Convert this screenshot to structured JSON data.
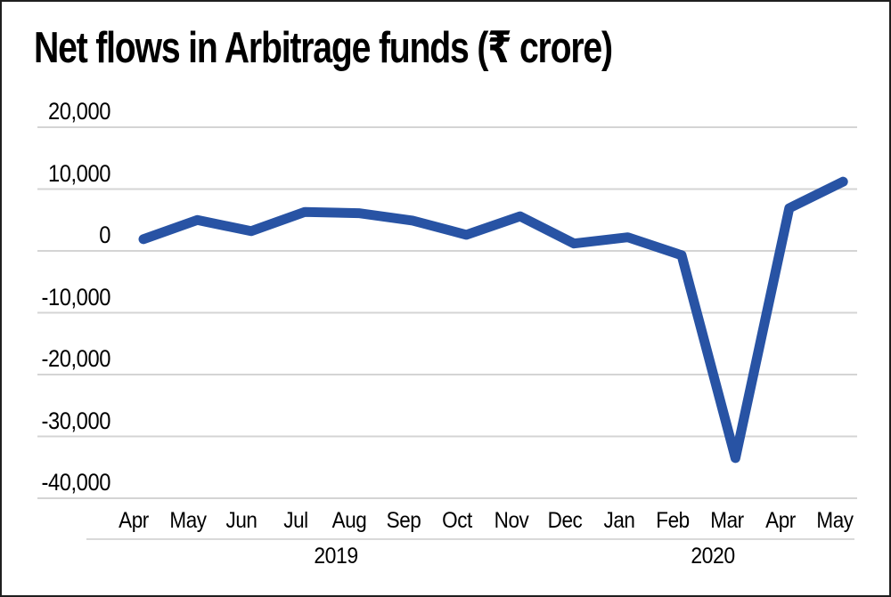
{
  "chart_data": {
    "type": "line",
    "title": "Net flows in Arbitrage funds (₹ crore)",
    "x_categories": [
      "Apr",
      "May",
      "Jun",
      "Jul",
      "Aug",
      "Sep",
      "Oct",
      "Nov",
      "Dec",
      "Jan",
      "Feb",
      "Mar",
      "Apr",
      "May"
    ],
    "year_groups": [
      {
        "label": "2019",
        "start_index": 0,
        "end_index": 8
      },
      {
        "label": "2020",
        "start_index": 9,
        "end_index": 13
      }
    ],
    "series": [
      {
        "name": "Net flows",
        "color": "#2853a4",
        "values": [
          1900,
          5000,
          3200,
          6300,
          6100,
          4900,
          2600,
          5600,
          1200,
          2200,
          -700,
          -33500,
          6900,
          11200
        ]
      }
    ],
    "ylim": [
      -40000,
      20000
    ],
    "y_tick_step": 10000,
    "y_tick_labels": [
      "20,000",
      "10,000",
      "0",
      "-10,000",
      "-20,000",
      "-30,000",
      "-40,000"
    ],
    "grid": true,
    "legend_position": "none",
    "colors": {
      "line": "#2853a4",
      "gridline": "#d4d4d4",
      "axis_separator": "#d9d9d9",
      "text": "#000000",
      "background": "#ffffff",
      "border": "#1f1f1f"
    }
  }
}
